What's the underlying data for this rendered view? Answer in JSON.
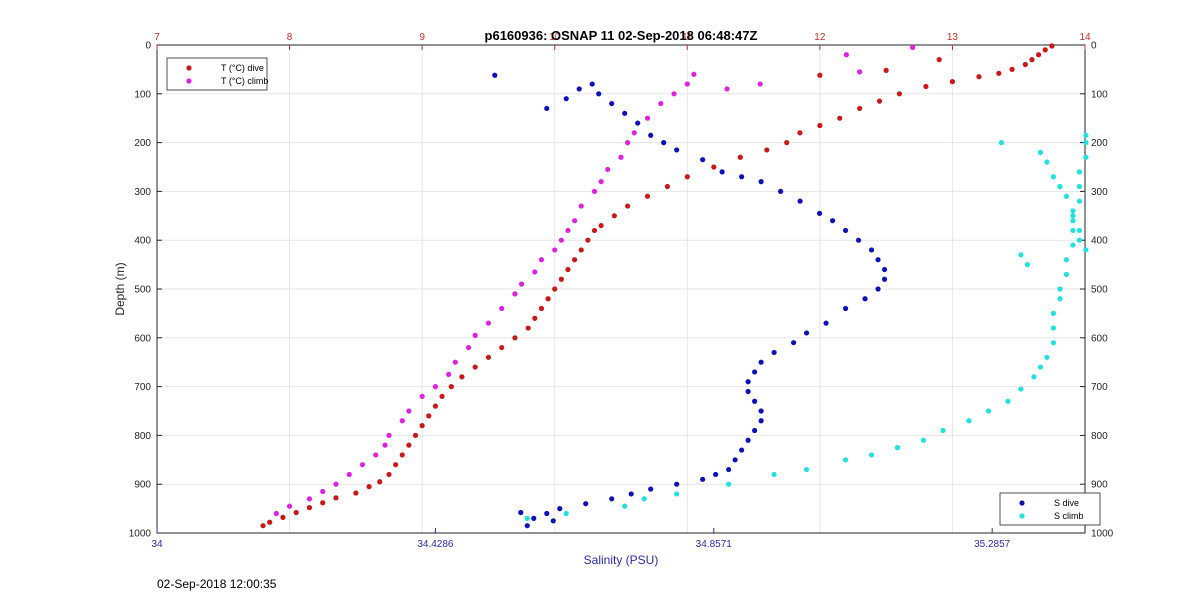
{
  "chart_data": {
    "type": "scatter",
    "title": "p6160936: OSNAP 11 02-Sep-2018 06:48:47Z",
    "ylabel": "Depth (m)",
    "xlabel_bottom": "Salinity (PSU)",
    "ylim": [
      1000,
      0
    ],
    "y_ticks": [
      0,
      100,
      200,
      300,
      400,
      500,
      600,
      700,
      800,
      900,
      1000
    ],
    "x_top": {
      "range": [
        7,
        14
      ],
      "ticks": [
        "7",
        "8",
        "9",
        "10",
        "11",
        "12",
        "13",
        "14"
      ],
      "color": "#cc2a2a"
    },
    "x_bottom": {
      "range": [
        34,
        35.4286
      ],
      "ticks": [
        "34",
        "34.4286",
        "34.8571",
        "35.2857"
      ],
      "tick_values": [
        34,
        34.4286,
        34.8571,
        35.2857
      ],
      "color": "#2a2aa8"
    },
    "grid": true,
    "series_temp": [
      {
        "name": "T (°C) dive",
        "color": "#c81818",
        "axis": "top",
        "points": [
          [
            7.8,
            985
          ],
          [
            7.85,
            978
          ],
          [
            7.95,
            968
          ],
          [
            8.05,
            958
          ],
          [
            8.15,
            948
          ],
          [
            8.25,
            938
          ],
          [
            8.35,
            928
          ],
          [
            8.5,
            918
          ],
          [
            8.6,
            905
          ],
          [
            8.68,
            895
          ],
          [
            8.75,
            880
          ],
          [
            8.8,
            860
          ],
          [
            8.85,
            840
          ],
          [
            8.9,
            820
          ],
          [
            8.95,
            800
          ],
          [
            9.0,
            780
          ],
          [
            9.05,
            760
          ],
          [
            9.1,
            740
          ],
          [
            9.15,
            720
          ],
          [
            9.22,
            700
          ],
          [
            9.3,
            680
          ],
          [
            9.4,
            660
          ],
          [
            9.5,
            640
          ],
          [
            9.6,
            620
          ],
          [
            9.7,
            600
          ],
          [
            9.8,
            580
          ],
          [
            9.85,
            560
          ],
          [
            9.9,
            540
          ],
          [
            9.95,
            520
          ],
          [
            10.0,
            500
          ],
          [
            10.05,
            480
          ],
          [
            10.1,
            460
          ],
          [
            10.15,
            440
          ],
          [
            10.2,
            420
          ],
          [
            10.25,
            400
          ],
          [
            10.3,
            380
          ],
          [
            10.35,
            370
          ],
          [
            10.45,
            350
          ],
          [
            10.55,
            330
          ],
          [
            10.7,
            310
          ],
          [
            10.85,
            290
          ],
          [
            11.0,
            270
          ],
          [
            11.2,
            250
          ],
          [
            11.4,
            230
          ],
          [
            11.6,
            215
          ],
          [
            11.75,
            200
          ],
          [
            11.85,
            180
          ],
          [
            12.0,
            165
          ],
          [
            12.15,
            150
          ],
          [
            12.3,
            130
          ],
          [
            12.45,
            115
          ],
          [
            12.6,
            100
          ],
          [
            12.8,
            85
          ],
          [
            13.0,
            75
          ],
          [
            13.2,
            65
          ],
          [
            13.35,
            58
          ],
          [
            13.45,
            50
          ],
          [
            13.55,
            40
          ],
          [
            13.6,
            30
          ],
          [
            13.65,
            20
          ],
          [
            13.7,
            10
          ],
          [
            13.75,
            2
          ],
          [
            12.0,
            62
          ],
          [
            12.5,
            52
          ],
          [
            12.9,
            30
          ]
        ]
      },
      {
        "name": "T (°C) climb",
        "color": "#e020e0",
        "axis": "top",
        "points": [
          [
            7.9,
            960
          ],
          [
            8.0,
            945
          ],
          [
            8.15,
            930
          ],
          [
            8.25,
            915
          ],
          [
            8.35,
            900
          ],
          [
            8.45,
            880
          ],
          [
            8.55,
            860
          ],
          [
            8.65,
            840
          ],
          [
            8.72,
            820
          ],
          [
            8.75,
            800
          ],
          [
            8.85,
            770
          ],
          [
            8.9,
            750
          ],
          [
            9.0,
            720
          ],
          [
            9.1,
            700
          ],
          [
            9.2,
            675
          ],
          [
            9.25,
            650
          ],
          [
            9.35,
            620
          ],
          [
            9.4,
            595
          ],
          [
            9.5,
            570
          ],
          [
            9.6,
            540
          ],
          [
            9.7,
            510
          ],
          [
            9.75,
            490
          ],
          [
            9.85,
            465
          ],
          [
            9.9,
            440
          ],
          [
            10.0,
            420
          ],
          [
            10.05,
            400
          ],
          [
            10.1,
            380
          ],
          [
            10.15,
            360
          ],
          [
            10.2,
            330
          ],
          [
            10.3,
            300
          ],
          [
            10.35,
            280
          ],
          [
            10.4,
            255
          ],
          [
            10.5,
            230
          ],
          [
            10.55,
            200
          ],
          [
            10.6,
            180
          ],
          [
            10.7,
            150
          ],
          [
            10.8,
            120
          ],
          [
            10.9,
            100
          ],
          [
            11.0,
            80
          ],
          [
            11.05,
            60
          ],
          [
            11.3,
            90
          ],
          [
            11.55,
            80
          ],
          [
            12.2,
            20
          ],
          [
            12.3,
            55
          ],
          [
            12.7,
            5
          ]
        ]
      }
    ],
    "series_sal": [
      {
        "name": "S dive",
        "color": "#1010b8",
        "axis": "bottom",
        "points": [
          [
            34.52,
            62
          ],
          [
            34.6,
            130
          ],
          [
            34.63,
            110
          ],
          [
            34.65,
            90
          ],
          [
            34.67,
            80
          ],
          [
            34.68,
            100
          ],
          [
            34.7,
            120
          ],
          [
            34.72,
            140
          ],
          [
            34.74,
            160
          ],
          [
            34.76,
            185
          ],
          [
            34.78,
            200
          ],
          [
            34.8,
            215
          ],
          [
            34.84,
            235
          ],
          [
            34.87,
            260
          ],
          [
            34.9,
            270
          ],
          [
            34.93,
            280
          ],
          [
            34.96,
            300
          ],
          [
            34.99,
            320
          ],
          [
            35.02,
            345
          ],
          [
            35.04,
            360
          ],
          [
            35.06,
            380
          ],
          [
            35.08,
            400
          ],
          [
            35.1,
            420
          ],
          [
            35.11,
            440
          ],
          [
            35.12,
            460
          ],
          [
            35.12,
            480
          ],
          [
            35.11,
            500
          ],
          [
            35.09,
            520
          ],
          [
            35.06,
            540
          ],
          [
            35.03,
            570
          ],
          [
            35.0,
            590
          ],
          [
            34.98,
            610
          ],
          [
            34.95,
            630
          ],
          [
            34.93,
            650
          ],
          [
            34.92,
            670
          ],
          [
            34.91,
            690
          ],
          [
            34.91,
            710
          ],
          [
            34.92,
            730
          ],
          [
            34.93,
            750
          ],
          [
            34.93,
            770
          ],
          [
            34.92,
            790
          ],
          [
            34.91,
            810
          ],
          [
            34.9,
            830
          ],
          [
            34.89,
            850
          ],
          [
            34.88,
            870
          ],
          [
            34.86,
            880
          ],
          [
            34.84,
            890
          ],
          [
            34.8,
            900
          ],
          [
            34.76,
            910
          ],
          [
            34.73,
            920
          ],
          [
            34.7,
            930
          ],
          [
            34.66,
            940
          ],
          [
            34.62,
            950
          ],
          [
            34.6,
            960
          ],
          [
            34.58,
            970
          ],
          [
            34.57,
            985
          ],
          [
            34.56,
            958
          ],
          [
            34.61,
            975
          ]
        ]
      },
      {
        "name": "S climb",
        "color": "#20e0e0",
        "axis": "bottom",
        "points": [
          [
            34.57,
            970
          ],
          [
            34.63,
            960
          ],
          [
            34.72,
            945
          ],
          [
            34.75,
            930
          ],
          [
            34.8,
            920
          ],
          [
            34.88,
            900
          ],
          [
            34.95,
            880
          ],
          [
            35.0,
            870
          ],
          [
            35.06,
            850
          ],
          [
            35.1,
            840
          ],
          [
            35.14,
            825
          ],
          [
            35.18,
            810
          ],
          [
            35.21,
            790
          ],
          [
            35.25,
            770
          ],
          [
            35.28,
            750
          ],
          [
            35.31,
            730
          ],
          [
            35.33,
            705
          ],
          [
            35.35,
            680
          ],
          [
            35.36,
            660
          ],
          [
            35.37,
            640
          ],
          [
            35.38,
            610
          ],
          [
            35.38,
            580
          ],
          [
            35.38,
            550
          ],
          [
            35.39,
            520
          ],
          [
            35.39,
            500
          ],
          [
            35.4,
            470
          ],
          [
            35.4,
            440
          ],
          [
            35.41,
            410
          ],
          [
            35.41,
            380
          ],
          [
            35.41,
            350
          ],
          [
            35.42,
            320
          ],
          [
            35.42,
            290
          ],
          [
            35.42,
            260
          ],
          [
            35.43,
            230
          ],
          [
            35.43,
            200
          ],
          [
            35.43,
            185
          ],
          [
            35.3,
            200
          ],
          [
            35.36,
            220
          ],
          [
            35.37,
            240
          ],
          [
            35.38,
            270
          ],
          [
            35.39,
            290
          ],
          [
            35.4,
            310
          ],
          [
            35.41,
            340
          ],
          [
            35.41,
            360
          ],
          [
            35.42,
            380
          ],
          [
            35.42,
            400
          ],
          [
            35.43,
            420
          ],
          [
            35.33,
            430
          ],
          [
            35.34,
            450
          ]
        ]
      }
    ],
    "legend_temp": {
      "placement": "top-left",
      "entries": [
        "T (°C) dive",
        "T (°C) climb"
      ]
    },
    "legend_sal": {
      "placement": "bottom-right",
      "entries": [
        "S dive",
        "S climb"
      ]
    }
  },
  "footer": {
    "timestamp": "02-Sep-2018 12:00:35"
  }
}
